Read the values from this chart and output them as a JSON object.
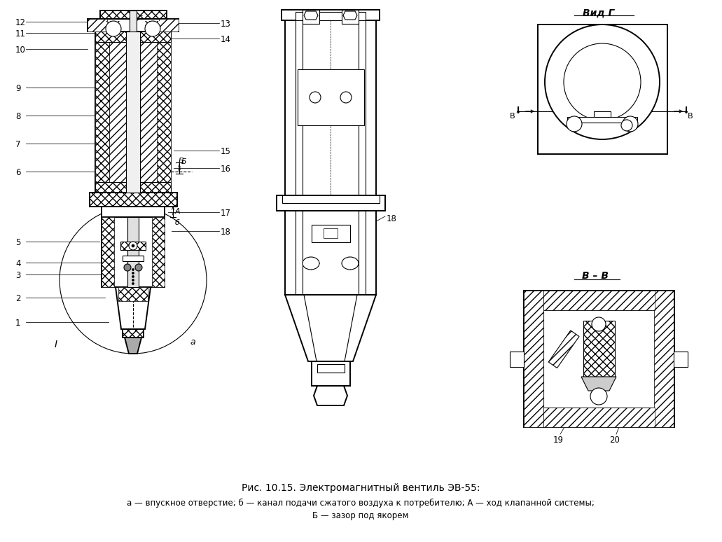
{
  "title_line1": "Рис. 10.15. Электромагнитный вентиль ЭВ-55:",
  "title_line2": "а — впускное отверстие; б — канал подачи сжатого воздуха к потребителю; А — ход клапанной системы;",
  "title_line3": "Б — зазор под якорем",
  "vid_g_label": "Вид Г",
  "bb_label": "В – В",
  "background": "#ffffff",
  "line_color": "#000000",
  "fig_width": 10.31,
  "fig_height": 7.74,
  "dpi": 100
}
